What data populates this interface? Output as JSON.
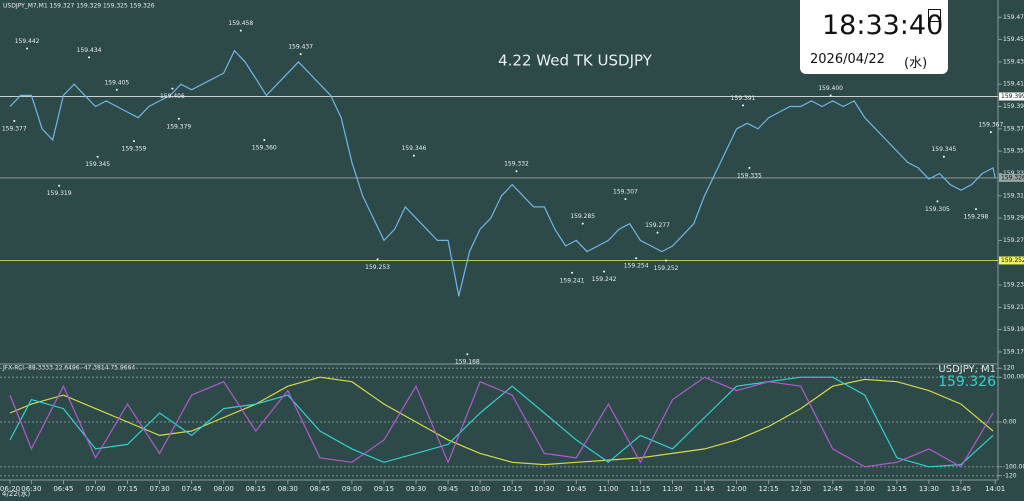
{
  "header": {
    "symbol_line": "USDJPY_M7,M1 159.327 159.329 159.325 159.326",
    "title": "4.22 Wed TK USDJPY",
    "date_label": "4/22(水)"
  },
  "clock": {
    "time": "18:33:40",
    "date": "2026/04/22",
    "weekday": "(水)"
  },
  "chart_data": [
    {
      "type": "line",
      "x": [
        "06:20",
        "06:25",
        "06:30",
        "06:35",
        "06:40",
        "06:45",
        "06:50",
        "06:55",
        "07:00",
        "07:05",
        "07:10",
        "07:15",
        "07:20",
        "07:25",
        "07:30",
        "07:35",
        "07:40",
        "07:45",
        "07:50",
        "07:55",
        "08:00",
        "08:05",
        "08:10",
        "08:15",
        "08:20",
        "08:25",
        "08:30",
        "08:35",
        "08:40",
        "08:45",
        "08:50",
        "08:55",
        "09:00",
        "09:05",
        "09:10",
        "09:15",
        "09:20",
        "09:25",
        "09:30",
        "09:35",
        "09:40",
        "09:45",
        "09:50",
        "09:55",
        "10:00",
        "10:05",
        "10:10",
        "10:15",
        "10:20",
        "10:25",
        "10:30",
        "10:35",
        "10:40",
        "10:45",
        "10:50",
        "10:55",
        "11:00",
        "11:05",
        "11:10",
        "11:15",
        "11:20",
        "11:25",
        "11:30",
        "11:35",
        "11:40",
        "11:45",
        "11:50",
        "11:55",
        "12:00",
        "12:05",
        "12:10",
        "12:15",
        "12:20",
        "12:25",
        "12:30",
        "12:35",
        "12:40",
        "12:45",
        "12:50",
        "12:55",
        "13:00",
        "13:05",
        "13:10",
        "13:15",
        "13:20",
        "13:25",
        "13:30",
        "13:35",
        "13:40",
        "13:45",
        "13:50",
        "13:55",
        "14:00",
        "14:01"
      ],
      "series": [
        {
          "color": "#6fb6ea",
          "values": [
            159.39,
            159.4,
            159.4,
            159.37,
            159.36,
            159.4,
            159.41,
            159.4,
            159.39,
            159.395,
            159.39,
            159.385,
            159.38,
            159.39,
            159.395,
            159.4,
            159.41,
            159.405,
            159.41,
            159.415,
            159.42,
            159.44,
            159.43,
            159.415,
            159.4,
            159.41,
            159.42,
            159.43,
            159.42,
            159.41,
            159.4,
            159.38,
            159.34,
            159.31,
            159.29,
            159.27,
            159.28,
            159.3,
            159.29,
            159.28,
            159.27,
            159.27,
            159.22,
            159.26,
            159.28,
            159.29,
            159.31,
            159.32,
            159.31,
            159.3,
            159.3,
            159.28,
            159.265,
            159.27,
            159.26,
            159.265,
            159.27,
            159.28,
            159.285,
            159.27,
            159.265,
            159.26,
            159.265,
            159.275,
            159.285,
            159.31,
            159.33,
            159.35,
            159.37,
            159.375,
            159.37,
            159.38,
            159.385,
            159.39,
            159.39,
            159.395,
            159.39,
            159.395,
            159.39,
            159.395,
            159.38,
            159.37,
            159.36,
            159.35,
            159.34,
            159.335,
            159.325,
            159.33,
            159.32,
            159.315,
            159.32,
            159.33,
            159.335,
            159.326
          ]
        }
      ],
      "ylim": [
        159.161,
        159.481
      ],
      "yticks": [
        {
          "value": 159.47,
          "label": "159.470"
        },
        {
          "value": 159.45,
          "label": "159.450"
        },
        {
          "value": 159.43,
          "label": "159.430"
        },
        {
          "value": 159.41,
          "label": "159.410"
        },
        {
          "value": 159.39,
          "label": "159.390"
        },
        {
          "value": 159.37,
          "label": "159.370"
        },
        {
          "value": 159.35,
          "label": "159.350"
        },
        {
          "value": 159.33,
          "label": "159.330"
        },
        {
          "value": 159.31,
          "label": "159.310"
        },
        {
          "value": 159.29,
          "label": "159.290"
        },
        {
          "value": 159.27,
          "label": "159.270"
        },
        {
          "value": 159.25,
          "label": "159.250"
        },
        {
          "value": 159.23,
          "label": "159.230"
        },
        {
          "value": 159.21,
          "label": "159.210"
        },
        {
          "value": 159.19,
          "label": "159.190"
        },
        {
          "value": 159.17,
          "label": "159.170"
        }
      ],
      "xticks": [
        "06:20",
        "06:30",
        "06:45",
        "07:00",
        "07:15",
        "07:30",
        "07:45",
        "08:00",
        "08:15",
        "08:30",
        "08:45",
        "09:00",
        "09:15",
        "09:30",
        "09:45",
        "10:00",
        "10:15",
        "10:30",
        "10:45",
        "11:00",
        "11:15",
        "11:30",
        "11:45",
        "12:00",
        "12:15",
        "12:30",
        "12:45",
        "13:00",
        "13:15",
        "13:30",
        "13:45",
        "14:01"
      ],
      "levels": [
        {
          "value": 159.399,
          "color": "#ffffff"
        },
        {
          "value": 159.326,
          "color": "#9aa6a6"
        },
        {
          "value": 159.252,
          "color": "#f2f25a"
        }
      ],
      "annotations": [
        {
          "x": "06:28",
          "value": 159.442
        },
        {
          "x": "06:57",
          "value": 159.434
        },
        {
          "x": "07:10",
          "value": 159.405
        },
        {
          "x": "07:36",
          "value": 159.406
        },
        {
          "x": "08:08",
          "value": 159.458
        },
        {
          "x": "08:36",
          "value": 159.437
        },
        {
          "x": "06:22",
          "value": 159.377
        },
        {
          "x": "07:01",
          "value": 159.345
        },
        {
          "x": "07:18",
          "value": 159.359
        },
        {
          "x": "07:39",
          "value": 159.379
        },
        {
          "x": "08:19",
          "value": 159.36,
          "label": "159.360"
        },
        {
          "x": "06:43",
          "value": 159.319
        },
        {
          "x": "09:29",
          "value": 159.346
        },
        {
          "x": "10:17",
          "value": 159.332
        },
        {
          "x": "11:08",
          "value": 159.307
        },
        {
          "x": "10:48",
          "value": 159.285
        },
        {
          "x": "11:23",
          "value": 159.277
        },
        {
          "x": "09:12",
          "value": 159.253
        },
        {
          "x": "10:43",
          "value": 159.241
        },
        {
          "x": "10:58",
          "value": 159.242
        },
        {
          "x": "11:13",
          "value": 159.254
        },
        {
          "x": "11:27",
          "value": 159.252
        },
        {
          "x": "09:54",
          "value": 159.168
        },
        {
          "x": "12:03",
          "value": 159.391
        },
        {
          "x": "12:06",
          "value": 159.335
        },
        {
          "x": "12:44",
          "value": 159.4,
          "label": "159.400"
        },
        {
          "x": "13:37",
          "value": 159.345
        },
        {
          "x": "13:59",
          "value": 159.367
        },
        {
          "x": "13:34",
          "value": 159.305
        },
        {
          "x": "13:52",
          "value": 159.298
        }
      ]
    },
    {
      "type": "line",
      "title": "JFX-RCI -88.3333 22.6496 -47.3814 75.9664",
      "symbol": "USDJPY, M1",
      "price": 159.326,
      "x": [
        "06:20",
        "06:30",
        "06:45",
        "07:00",
        "07:15",
        "07:30",
        "07:45",
        "08:00",
        "08:15",
        "08:30",
        "08:45",
        "09:00",
        "09:15",
        "09:30",
        "09:45",
        "10:00",
        "10:15",
        "10:30",
        "10:45",
        "11:00",
        "11:15",
        "11:30",
        "11:45",
        "12:00",
        "12:15",
        "12:30",
        "12:45",
        "13:00",
        "13:15",
        "13:30",
        "13:45",
        "14:00"
      ],
      "series": [
        {
          "color": "#d8d84a",
          "values": [
            20,
            40,
            60,
            30,
            0,
            -30,
            -20,
            10,
            40,
            80,
            100,
            90,
            40,
            0,
            -40,
            -70,
            -90,
            -95,
            -90,
            -85,
            -80,
            -70,
            -60,
            -40,
            -10,
            30,
            80,
            95,
            90,
            70,
            40,
            -20
          ]
        },
        {
          "color": "#33d0d0",
          "values": [
            -40,
            50,
            30,
            -60,
            -50,
            20,
            -30,
            30,
            40,
            60,
            -20,
            -60,
            -90,
            -70,
            -50,
            20,
            80,
            20,
            -40,
            -90,
            -30,
            -60,
            10,
            80,
            90,
            100,
            100,
            60,
            -80,
            -100,
            -95,
            -30
          ]
        },
        {
          "color": "#b05ad0",
          "values": [
            60,
            -60,
            80,
            -80,
            40,
            -70,
            60,
            90,
            -20,
            70,
            -80,
            -90,
            -40,
            80,
            -90,
            90,
            60,
            -70,
            -80,
            40,
            -90,
            50,
            100,
            70,
            90,
            80,
            -60,
            -100,
            -90,
            -60,
            -100,
            20
          ]
        }
      ],
      "ylim": [
        -125,
        125
      ],
      "yticks": [
        120,
        {
          "value": 100,
          "label": "100.0000"
        },
        {
          "value": 0,
          "label": "0.00"
        },
        {
          "value": -100,
          "label": "-100.0000"
        },
        -120
      ],
      "grid": true
    }
  ]
}
